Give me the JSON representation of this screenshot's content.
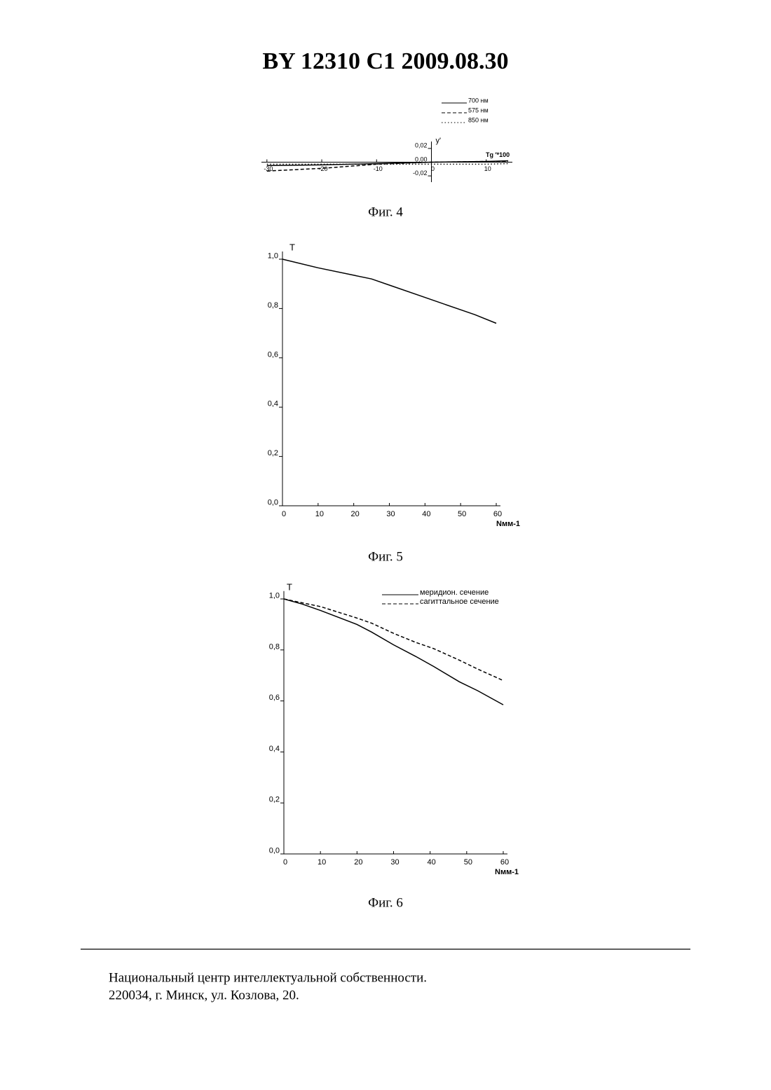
{
  "header": {
    "title": "BY  12310  C1  2009.08.30"
  },
  "chart_data": [
    {
      "type": "line",
      "caption": "Фиг. 4",
      "ylabel": "y'",
      "xlabel": "Tg ′*100",
      "x": [
        -30,
        -20,
        -10,
        0,
        10,
        14
      ],
      "series": [
        {
          "name": "700 нм",
          "color": "#000000",
          "dash": "solid",
          "values": [
            -0.005,
            -0.004,
            -0.002,
            0.0,
            0.001,
            0.002
          ]
        },
        {
          "name": "575 нм",
          "color": "#000000",
          "dash": "dashed",
          "values": [
            -0.013,
            -0.009,
            -0.003,
            0.0,
            0.001,
            0.001
          ]
        },
        {
          "name": "850 нм",
          "color": "#000000",
          "dash": "dotted",
          "values": [
            -0.003,
            -0.003,
            -0.003,
            -0.003,
            -0.003,
            -0.002
          ]
        }
      ],
      "xlim": [
        -31,
        14
      ],
      "ylim": [
        -0.025,
        0.025
      ],
      "xticks": [
        -30,
        -20,
        -10,
        0,
        10
      ],
      "yticks": [
        {
          "value": -0.02,
          "label": "-0,02"
        },
        {
          "value": 0,
          "label": "0,00"
        },
        {
          "value": 0.02,
          "label": "0,02"
        }
      ],
      "legend": "upper right"
    },
    {
      "type": "line",
      "caption": "Фиг. 5",
      "ylabel": "T",
      "xlabel": "Nмм-1",
      "x": [
        0,
        10,
        20,
        25,
        30,
        40,
        50,
        54,
        60
      ],
      "series": [
        {
          "name": null,
          "color": "#000000",
          "dash": "solid",
          "values": [
            1.0,
            0.965,
            0.935,
            0.92,
            0.895,
            0.845,
            0.795,
            0.775,
            0.74
          ]
        }
      ],
      "xlim": [
        0,
        60
      ],
      "ylim": [
        0,
        1.0
      ],
      "xticks": [
        0,
        10,
        20,
        30,
        40,
        50,
        60
      ],
      "yticks": [
        {
          "value": 0,
          "label": "0,0"
        },
        {
          "value": 0.2,
          "label": "0,2"
        },
        {
          "value": 0.4,
          "label": "0,4"
        },
        {
          "value": 0.6,
          "label": "0,6"
        },
        {
          "value": 0.8,
          "label": "0,8"
        },
        {
          "value": 1.0,
          "label": "1,0"
        }
      ]
    },
    {
      "type": "line",
      "caption": "Фиг. 6",
      "ylabel": "T",
      "xlabel": "Nмм-1",
      "x": [
        0,
        5,
        10,
        20,
        24,
        30,
        36,
        41,
        48,
        53,
        60
      ],
      "series": [
        {
          "name": "меридион. сечение",
          "color": "#000000",
          "dash": "solid",
          "values": [
            1.0,
            0.98,
            0.955,
            0.9,
            0.87,
            0.82,
            0.775,
            0.735,
            0.675,
            0.64,
            0.585
          ]
        },
        {
          "name": "сагиттальное сечение",
          "color": "#000000",
          "dash": "dashed",
          "values": [
            1.0,
            0.985,
            0.97,
            0.925,
            0.905,
            0.865,
            0.83,
            0.805,
            0.76,
            0.725,
            0.68
          ]
        }
      ],
      "xlim": [
        0,
        60
      ],
      "ylim": [
        0,
        1.0
      ],
      "xticks": [
        0,
        10,
        20,
        30,
        40,
        50,
        60
      ],
      "yticks": [
        {
          "value": 0,
          "label": "0,0"
        },
        {
          "value": 0.2,
          "label": "0,2"
        },
        {
          "value": 0.4,
          "label": "0,4"
        },
        {
          "value": 0.6,
          "label": "0,6"
        },
        {
          "value": 0.8,
          "label": "0,8"
        },
        {
          "value": 1.0,
          "label": "1,0"
        }
      ],
      "legend": "upper right"
    }
  ],
  "footer": {
    "lines": [
      "Национальный центр интеллектуальной собственности.",
      "220034, г. Минск, ул. Козлова, 20."
    ]
  }
}
